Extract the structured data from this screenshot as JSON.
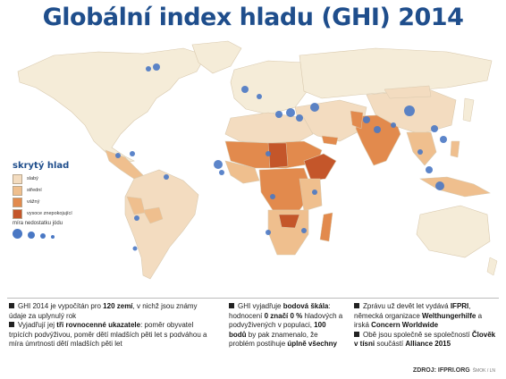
{
  "title": "Globální index hladu (GHI) 2014",
  "legend": {
    "title": "skrytý hlad",
    "items": [
      {
        "label": "slabý",
        "color": "#f3dcc0"
      },
      {
        "label": "střední",
        "color": "#efbf8e"
      },
      {
        "label": "vážný",
        "color": "#e28a4d"
      },
      {
        "label": "vysoce znepokojující",
        "color": "#c4562a"
      }
    ],
    "dots_label": "míra nedostatku jódu",
    "dot_color": "#4a78c4"
  },
  "colors": {
    "ocean": "#ffffff",
    "land_nodata": "#f5ecd8",
    "title": "#1f4e8c"
  },
  "footer": {
    "col1": {
      "p1_pre": "GHI 2014 je vypočítán pro ",
      "p1_bold": "120 zemí",
      "p1_post": ", v nichž jsou známy údaje za uplynulý rok",
      "p2_pre": "Vyjadřují jej ",
      "p2_bold": "tři rovnocenné ukazatele",
      "p2_post": ": poměr obyvatel trpících podvýživou, poměr dětí mladších pěti let s podváhou a míra úmrtnosti dětí mladších pěti let"
    },
    "col2": {
      "p1_pre": "GHI vyjadřuje ",
      "p1_bold": "bodová škála",
      "p1_mid": ": hodnocení ",
      "p1_bold2": "0 značí 0 %",
      "p1_mid2": " hladových a podvyživených v populaci, ",
      "p1_bold3": "100 bodů",
      "p1_mid3": " by pak znamenalo, že problém postihuje ",
      "p1_bold4": "úplně všechny"
    },
    "col3": {
      "p1_pre": "Zprávu už devět let vydává ",
      "p1_bold": "IFPRI",
      "p1_mid": ", německá organizace ",
      "p1_bold2": "Welthungerhilfe",
      "p1_mid2": " a irská ",
      "p1_bold3": "Concern Worldwide",
      "p2_pre": "Obě jsou společně se společností ",
      "p2_bold": "Člověk v tísni",
      "p2_mid": " součástí ",
      "p2_bold2": "Alliance 2015"
    }
  },
  "source": {
    "label": "ZDROJ: IFPRI.ORG",
    "author": "ŠMOK / LN"
  }
}
